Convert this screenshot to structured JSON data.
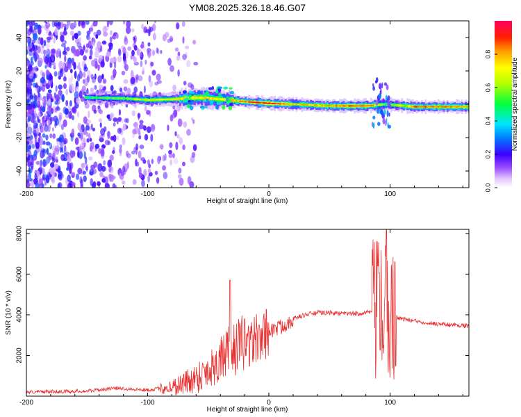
{
  "title": "YM08.2025.326.18.46.G07",
  "chart_data": [
    {
      "type": "heatmap",
      "title": "YM08.2025.326.18.46.G07",
      "xlabel": "Height of straight line (km)",
      "ylabel": "Frequency (Hz)",
      "xlim": [
        -200,
        165
      ],
      "ylim": [
        -50,
        50
      ],
      "x_ticks": [
        -200,
        -100,
        0,
        100
      ],
      "x_tick_labels": [
        "-200",
        "-100",
        "0",
        "100"
      ],
      "y_ticks": [
        -40,
        -20,
        0,
        20,
        40
      ],
      "y_tick_labels": [
        "-40",
        "-20",
        "0",
        "20",
        "40"
      ],
      "colorbar": {
        "label": "Normalized spectral amplitude",
        "range": [
          0,
          1
        ],
        "ticks": [
          0.0,
          0.2,
          0.4,
          0.6,
          0.8
        ],
        "tick_labels": [
          "0.0",
          "0.2",
          "0.4",
          "0.6",
          "0.8"
        ]
      },
      "ridge": [
        {
          "x": -150,
          "f": 4.0,
          "amp": 0.5
        },
        {
          "x": -120,
          "f": 3.5,
          "amp": 0.6
        },
        {
          "x": -100,
          "f": 2.5,
          "amp": 0.65
        },
        {
          "x": -80,
          "f": 3.0,
          "amp": 0.7
        },
        {
          "x": -60,
          "f": 4.0,
          "amp": 0.75
        },
        {
          "x": -40,
          "f": 3.0,
          "amp": 0.7
        },
        {
          "x": -20,
          "f": 1.5,
          "amp": 0.85
        },
        {
          "x": 0,
          "f": 0.5,
          "amp": 0.95
        },
        {
          "x": 20,
          "f": 0.0,
          "amp": 0.75
        },
        {
          "x": 50,
          "f": -1.0,
          "amp": 0.8
        },
        {
          "x": 80,
          "f": -1.0,
          "amp": 0.9
        },
        {
          "x": 95,
          "f": 0.0,
          "amp": 0.55
        },
        {
          "x": 120,
          "f": -1.5,
          "amp": 0.85
        },
        {
          "x": 165,
          "f": -1.5,
          "amp": 0.8
        }
      ]
    },
    {
      "type": "line",
      "title": "",
      "xlabel": "Height of straight line (km)",
      "ylabel": "SNR (10 * v/v)",
      "xlim": [
        -200,
        165
      ],
      "ylim": [
        0,
        8200
      ],
      "x_ticks": [
        -200,
        -100,
        0,
        100
      ],
      "x_tick_labels": [
        "-200",
        "-100",
        "0",
        "100"
      ],
      "y_ticks": [
        2000,
        4000,
        6000,
        8000
      ],
      "y_tick_labels": [
        "2000",
        "4000",
        "6000",
        "8000"
      ],
      "series": [
        {
          "name": "SNR",
          "color": "#e83030",
          "x": [
            -200,
            -150,
            -125,
            -100,
            -80,
            -70,
            -60,
            -50,
            -40,
            -30,
            -20,
            -10,
            0,
            10,
            20,
            30,
            40,
            50,
            60,
            70,
            80,
            85,
            90,
            95,
            100,
            105,
            110,
            120,
            140,
            165
          ],
          "y": [
            200,
            250,
            400,
            300,
            450,
            650,
            900,
            1300,
            1800,
            2300,
            2600,
            2800,
            3200,
            3400,
            3800,
            4000,
            4100,
            4100,
            4050,
            4050,
            4100,
            4150,
            4000,
            4200,
            4000,
            3900,
            3800,
            3700,
            3550,
            3450
          ]
        }
      ],
      "spikes": [
        {
          "x": -32,
          "y": 5700
        },
        {
          "x": -20,
          "y": 3800
        },
        {
          "x": -8,
          "y": 3500
        },
        {
          "x": 90,
          "y": 6400
        },
        {
          "x": 97,
          "y": 8200
        },
        {
          "x": 104,
          "y": 6600
        }
      ]
    }
  ]
}
